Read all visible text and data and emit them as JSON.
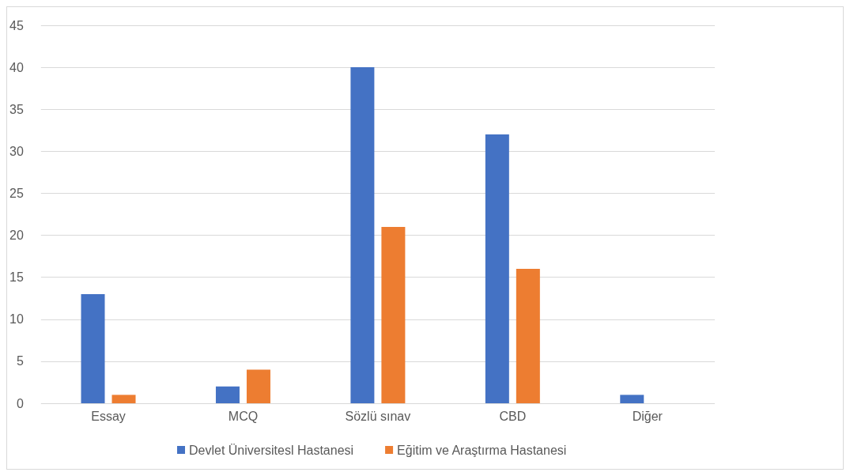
{
  "chart_data": {
    "type": "bar",
    "categories": [
      "Essay",
      "MCQ",
      "Sözlü sınav",
      "CBD",
      "Diğer"
    ],
    "series": [
      {
        "name": "Devlet Üniversitesl Hastanesi",
        "color": "#4472c4",
        "values": [
          13,
          2,
          40,
          32,
          1
        ]
      },
      {
        "name": "Eğitim ve Araştırma Hastanesi",
        "color": "#ed7d31",
        "values": [
          1,
          4,
          21,
          16,
          0
        ]
      }
    ],
    "ylim": [
      0,
      45
    ],
    "yticks": [
      0,
      5,
      10,
      15,
      20,
      25,
      30,
      35,
      40,
      45
    ],
    "grid": "y",
    "legend": "bottom"
  }
}
